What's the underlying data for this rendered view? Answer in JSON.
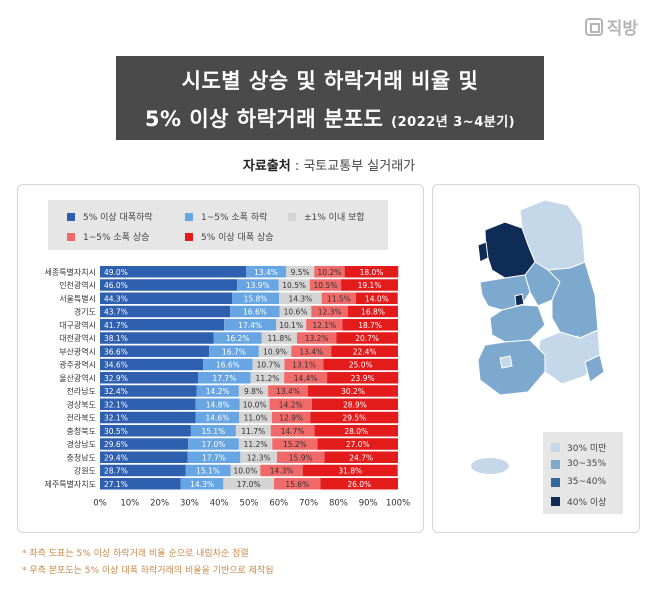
{
  "brand": "직방",
  "title_line1": "시도별 상승 및 하락거래 비율 및",
  "title_line2": "5% 이상 하락거래 분포도",
  "title_period": "(2022년 3~4분기)",
  "source_label": "자료출처",
  "source_text": " : 국토교통부 실거래가",
  "footnotes": [
    "* 좌측 도표는 5% 이상 하락거래 비율 순으로 내림차순 정렬",
    "* 우측 분포도는 5% 이상 대폭 하락거래의 비율을 기반으로 제작됨"
  ],
  "chart_data": {
    "type": "bar",
    "orientation": "horizontal",
    "stacked": true,
    "xlim": [
      0,
      100
    ],
    "x_ticks": [
      "0%",
      "10%",
      "20%",
      "30%",
      "40%",
      "50%",
      "60%",
      "70%",
      "80%",
      "90%",
      "100%"
    ],
    "grid": false,
    "categories": [
      "세종특별자치시",
      "인천광역시",
      "서울특별시",
      "경기도",
      "대구광역시",
      "대전광역시",
      "부산광역시",
      "광주광역시",
      "울산광역시",
      "전라남도",
      "경상북도",
      "전라북도",
      "충청북도",
      "경상남도",
      "충청남도",
      "강원도",
      "제주특별자치도"
    ],
    "series": [
      {
        "name": "5% 이상 대폭하락",
        "color": "#2f5faf",
        "values": [
          49.0,
          46.0,
          44.3,
          43.7,
          41.7,
          38.1,
          36.6,
          34.6,
          32.9,
          32.4,
          32.1,
          32.1,
          30.5,
          29.6,
          29.4,
          28.7,
          27.1
        ]
      },
      {
        "name": "1~5% 소폭 하락",
        "color": "#68a5e3",
        "values": [
          13.4,
          13.9,
          15.8,
          16.6,
          17.4,
          16.2,
          16.7,
          16.6,
          17.7,
          14.2,
          14.8,
          14.6,
          15.1,
          17.0,
          17.7,
          15.1,
          14.3
        ]
      },
      {
        "name": "±1% 이내 보합",
        "color": "#d4d4d4",
        "values": [
          9.5,
          10.5,
          14.3,
          10.6,
          10.1,
          11.8,
          10.9,
          10.7,
          11.2,
          9.8,
          10.0,
          11.0,
          11.7,
          11.2,
          12.3,
          10.0,
          17.0
        ]
      },
      {
        "name": "1~5% 소폭 상승",
        "color": "#f06a6a",
        "values": [
          10.2,
          10.5,
          11.5,
          12.3,
          12.1,
          13.2,
          13.4,
          13.1,
          14.4,
          13.4,
          14.2,
          12.9,
          14.7,
          15.2,
          15.9,
          14.3,
          15.6
        ]
      },
      {
        "name": "5% 이상 대폭 상승",
        "color": "#e31b1b",
        "values": [
          18.0,
          19.1,
          14.0,
          16.8,
          18.7,
          20.7,
          22.4,
          25.0,
          23.9,
          30.2,
          28.9,
          29.5,
          28.0,
          27.0,
          24.7,
          31.8,
          26.0
        ]
      }
    ],
    "legend_position": "top"
  },
  "map": {
    "legend": [
      {
        "label": "30% 미만",
        "color": "#c4d8ea"
      },
      {
        "label": "30~35%",
        "color": "#7ea9cf"
      },
      {
        "label": "35~40%",
        "color": "#33679c"
      },
      {
        "label": "40% 이상",
        "color": "#0f2c57"
      }
    ]
  }
}
